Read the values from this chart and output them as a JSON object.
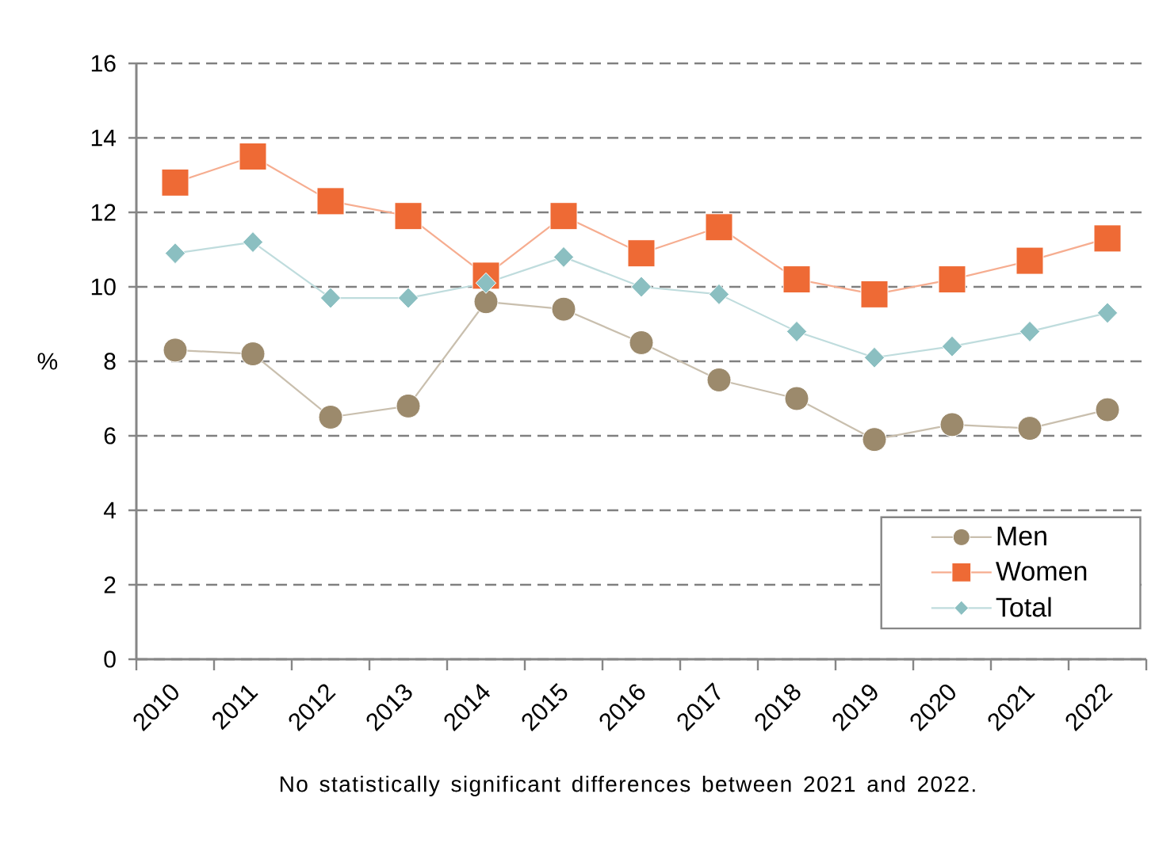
{
  "chart_data": {
    "type": "line",
    "categories": [
      "2010",
      "2011",
      "2012",
      "2013",
      "2014",
      "2015",
      "2016",
      "2017",
      "2018",
      "2019",
      "2020",
      "2021",
      "2022"
    ],
    "series": [
      {
        "name": "Men",
        "color": "#9c8a6c",
        "marker": "circle",
        "values": [
          8.3,
          8.2,
          6.5,
          6.8,
          9.6,
          9.4,
          8.5,
          7.5,
          7.0,
          5.9,
          6.3,
          6.2,
          6.7
        ]
      },
      {
        "name": "Women",
        "color": "#ee6a35",
        "marker": "square",
        "values": [
          12.8,
          13.5,
          12.3,
          11.9,
          10.3,
          11.9,
          10.9,
          11.6,
          10.2,
          9.8,
          10.2,
          10.7,
          11.3
        ]
      },
      {
        "name": "Total",
        "color": "#8bbfc1",
        "marker": "diamond",
        "values": [
          10.9,
          11.2,
          9.7,
          9.7,
          10.1,
          10.8,
          10.0,
          9.8,
          8.8,
          8.1,
          8.4,
          8.8,
          9.3
        ]
      }
    ],
    "ylabel": "%",
    "ylim": [
      0,
      16
    ],
    "yticks": [
      0,
      2,
      4,
      6,
      8,
      10,
      12,
      14,
      16
    ],
    "grid": "y",
    "legend": "bottom right",
    "line_style": "solid",
    "annotations": [
      "No statistically significant differences between 2021 and 2022."
    ]
  }
}
